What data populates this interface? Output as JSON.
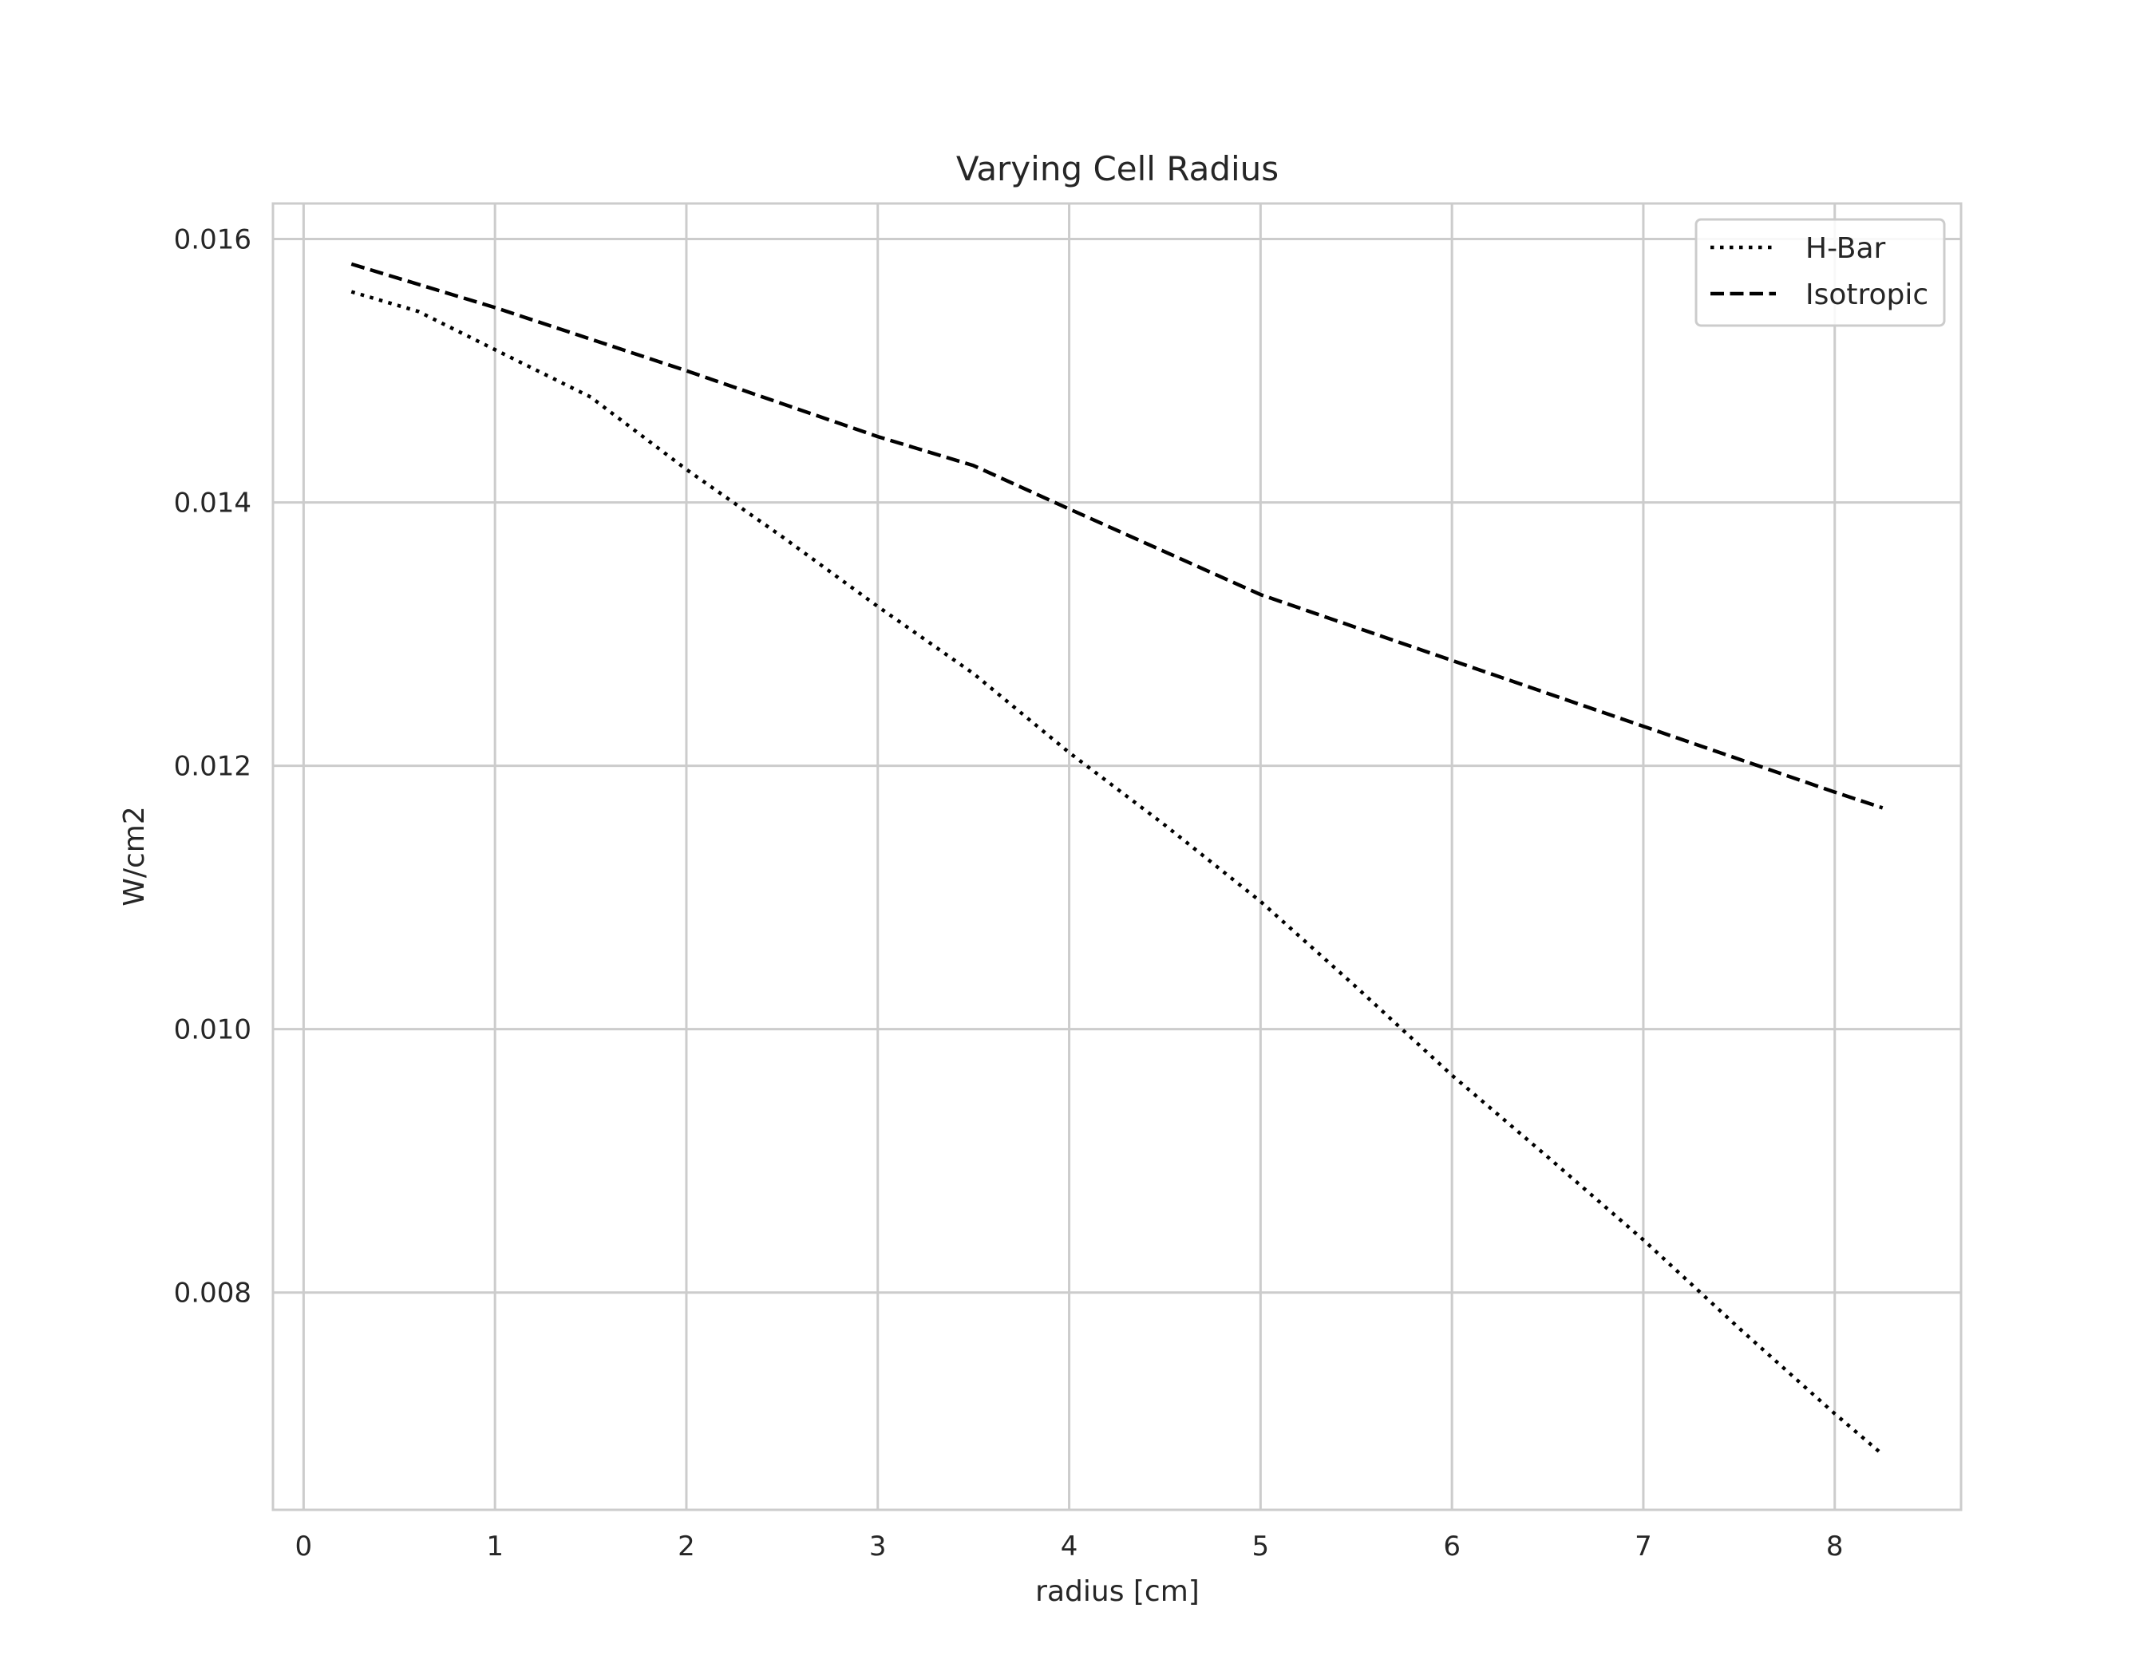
{
  "chart_data": {
    "type": "line",
    "title": "Varying Cell Radius",
    "xlabel": "radius [cm]",
    "ylabel": "W/cm2",
    "xlim": [
      -0.16,
      8.66
    ],
    "ylim": [
      0.00635,
      0.01627
    ],
    "xticks": [
      0,
      1,
      2,
      3,
      4,
      5,
      6,
      7,
      8
    ],
    "xtick_labels": [
      "0",
      "1",
      "2",
      "3",
      "4",
      "5",
      "6",
      "7",
      "8"
    ],
    "yticks": [
      0.008,
      0.01,
      0.012,
      0.014,
      0.016
    ],
    "ytick_labels": [
      "0.008",
      "0.010",
      "0.012",
      "0.014",
      "0.016"
    ],
    "grid": true,
    "legend_position": "top-right",
    "series": [
      {
        "name": "H-Bar",
        "style": "dotted",
        "color": "#000000",
        "x": [
          0.25,
          0.6,
          1.0,
          1.5,
          2.0,
          2.5,
          3.0,
          3.5,
          4.0,
          4.5,
          5.0,
          5.5,
          6.0,
          6.5,
          7.0,
          7.5,
          8.0,
          8.25
        ],
        "y": [
          0.0156,
          0.01545,
          0.01516,
          0.0148,
          0.01425,
          0.01374,
          0.01321,
          0.0127,
          0.0121,
          0.01155,
          0.01097,
          0.01032,
          0.00965,
          0.00903,
          0.0084,
          0.00773,
          0.00708,
          0.00677
        ]
      },
      {
        "name": "Isotropic",
        "style": "dashed",
        "color": "#000000",
        "x": [
          0.25,
          1.0,
          2.0,
          3.0,
          3.5,
          4.0,
          5.0,
          6.0,
          7.0,
          8.0,
          8.25
        ],
        "y": [
          0.01581,
          0.01548,
          0.015,
          0.0145,
          0.01428,
          0.01395,
          0.0133,
          0.0128,
          0.0123,
          0.0118,
          0.01168
        ]
      }
    ]
  }
}
